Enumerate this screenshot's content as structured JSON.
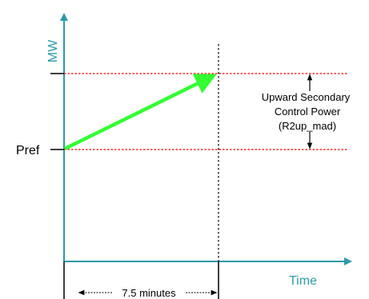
{
  "axes": {
    "y_label": "MW",
    "x_label": "Time"
  },
  "labels": {
    "pref": "Pref",
    "band_line1": "Upward Secondary",
    "band_line2": "Control Power",
    "band_line3": "(R2up_mad)",
    "duration": "7.5 minutes"
  },
  "colors": {
    "axis": "#2e9aa8",
    "ramp": "#33ff33",
    "limit_line": "#ff0000",
    "marker": "#000000"
  }
}
